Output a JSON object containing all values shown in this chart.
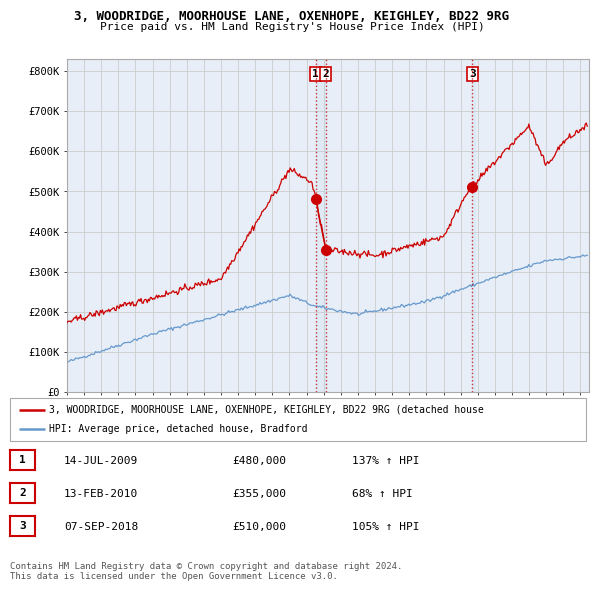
{
  "title1": "3, WOODRIDGE, MOORHOUSE LANE, OXENHOPE, KEIGHLEY, BD22 9RG",
  "title2": "Price paid vs. HM Land Registry's House Price Index (HPI)",
  "ylabel_ticks": [
    "£0",
    "£100K",
    "£200K",
    "£300K",
    "£400K",
    "£500K",
    "£600K",
    "£700K",
    "£800K"
  ],
  "ytick_values": [
    0,
    100000,
    200000,
    300000,
    400000,
    500000,
    600000,
    700000,
    800000
  ],
  "ylim": [
    0,
    830000
  ],
  "xlim_start": 1995.0,
  "xlim_end": 2025.5,
  "grid_color": "#cccccc",
  "hpi_color": "#6699cc",
  "price_color": "#cc0000",
  "plot_bg_color": "#e8eef8",
  "transactions": [
    {
      "label": "1",
      "date": 2009.54,
      "price": 480000
    },
    {
      "label": "2",
      "date": 2010.12,
      "price": 355000
    },
    {
      "label": "3",
      "date": 2018.68,
      "price": 510000
    }
  ],
  "vline_color": "#cc0000",
  "legend_line1": "3, WOODRIDGE, MOORHOUSE LANE, OXENHOPE, KEIGHLEY, BD22 9RG (detached house",
  "legend_line2": "HPI: Average price, detached house, Bradford",
  "table_rows": [
    [
      "1",
      "14-JUL-2009",
      "£480,000",
      "137% ↑ HPI"
    ],
    [
      "2",
      "13-FEB-2010",
      "£355,000",
      "68% ↑ HPI"
    ],
    [
      "3",
      "07-SEP-2018",
      "£510,000",
      "105% ↑ HPI"
    ]
  ],
  "footnote": "Contains HM Land Registry data © Crown copyright and database right 2024.\nThis data is licensed under the Open Government Licence v3.0."
}
